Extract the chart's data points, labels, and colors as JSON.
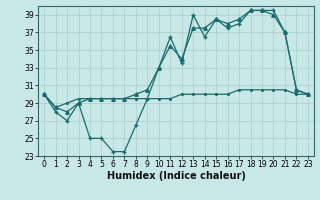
{
  "xlabel": "Humidex (Indice chaleur)",
  "background_color": "#c8e8e8",
  "grid_color": "#aacccc",
  "line_color": "#1a6b6b",
  "xlim": [
    -0.5,
    23.5
  ],
  "ylim": [
    23,
    40
  ],
  "yticks": [
    23,
    25,
    27,
    29,
    31,
    33,
    35,
    37,
    39
  ],
  "xticks": [
    0,
    1,
    2,
    3,
    4,
    5,
    6,
    7,
    8,
    9,
    10,
    11,
    12,
    13,
    14,
    15,
    16,
    17,
    18,
    19,
    20,
    21,
    22,
    23
  ],
  "series": [
    {
      "x": [
        0,
        1,
        2,
        3,
        4,
        5,
        6,
        7,
        8,
        9,
        10,
        11,
        12,
        13,
        14,
        15,
        16,
        17,
        18,
        19,
        20,
        21,
        22,
        23
      ],
      "y": [
        30.0,
        28.0,
        27.0,
        29.0,
        25.0,
        25.0,
        23.5,
        23.5,
        26.5,
        29.5,
        33.0,
        36.5,
        33.5,
        39.0,
        36.5,
        38.5,
        37.5,
        38.0,
        39.5,
        39.5,
        39.5,
        37.0,
        30.5,
        30.0
      ]
    },
    {
      "x": [
        0,
        1,
        2,
        3,
        4,
        5,
        6,
        7,
        8,
        9,
        10,
        11,
        12,
        13,
        14,
        15,
        16,
        17,
        18,
        19,
        20,
        21,
        22,
        23
      ],
      "y": [
        30.0,
        28.5,
        28.0,
        29.0,
        29.5,
        29.5,
        29.5,
        29.5,
        30.0,
        30.5,
        33.0,
        35.5,
        34.0,
        37.5,
        37.5,
        38.5,
        38.0,
        38.5,
        39.5,
        39.5,
        39.0,
        37.0,
        30.5,
        30.0
      ]
    },
    {
      "x": [
        0,
        1,
        2,
        3,
        4,
        5,
        6,
        7,
        8,
        9,
        10,
        11,
        12,
        13,
        14,
        15,
        16,
        17,
        18,
        19,
        20,
        21,
        22,
        23
      ],
      "y": [
        30.0,
        28.5,
        29.0,
        29.5,
        29.5,
        29.5,
        29.5,
        29.5,
        29.5,
        29.5,
        29.5,
        29.5,
        30.0,
        30.0,
        30.0,
        30.0,
        30.0,
        30.5,
        30.5,
        30.5,
        30.5,
        30.5,
        30.0,
        30.0
      ]
    }
  ]
}
